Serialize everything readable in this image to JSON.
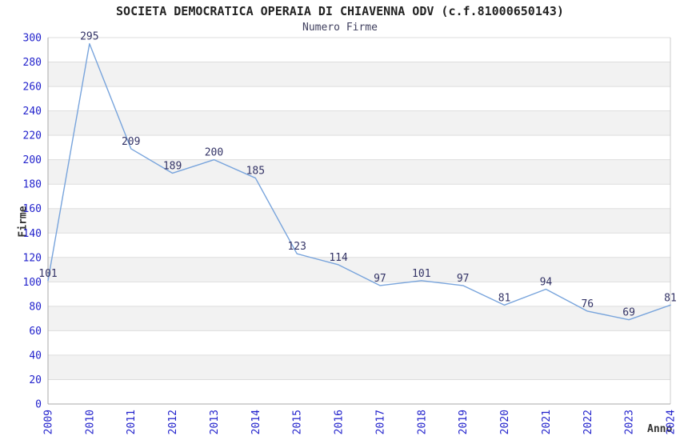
{
  "chart_data": {
    "type": "line",
    "title": "SOCIETA DEMOCRATICA OPERAIA DI CHIAVENNA ODV (c.f.81000650143)",
    "subtitle": "Numero Firme",
    "xlabel": "Anno",
    "ylabel": "Firme",
    "categories": [
      "2009",
      "2010",
      "2011",
      "2012",
      "2013",
      "2014",
      "2015",
      "2016",
      "2017",
      "2018",
      "2019",
      "2020",
      "2021",
      "2022",
      "2023",
      "2024"
    ],
    "values": [
      101,
      295,
      209,
      189,
      200,
      185,
      123,
      114,
      97,
      101,
      97,
      81,
      94,
      76,
      69,
      81
    ],
    "ylim": [
      0,
      300
    ],
    "ytick_step": 20,
    "grid": true,
    "bands": "alternating-horizontal",
    "legend": "none",
    "colors": {
      "line": "#78A4DC",
      "axis_tick_text": "#2222CC",
      "data_label_text": "#333366",
      "band_fill": "#F2F2F2",
      "gridline": "#DDDDDD",
      "axis_line": "#AAAAAA",
      "plot_border": "#CCCCCC",
      "title_text": "#222222",
      "subtitle_text": "#40405F",
      "axis_title_text": "#333333",
      "background": "#FFFFFF"
    }
  }
}
